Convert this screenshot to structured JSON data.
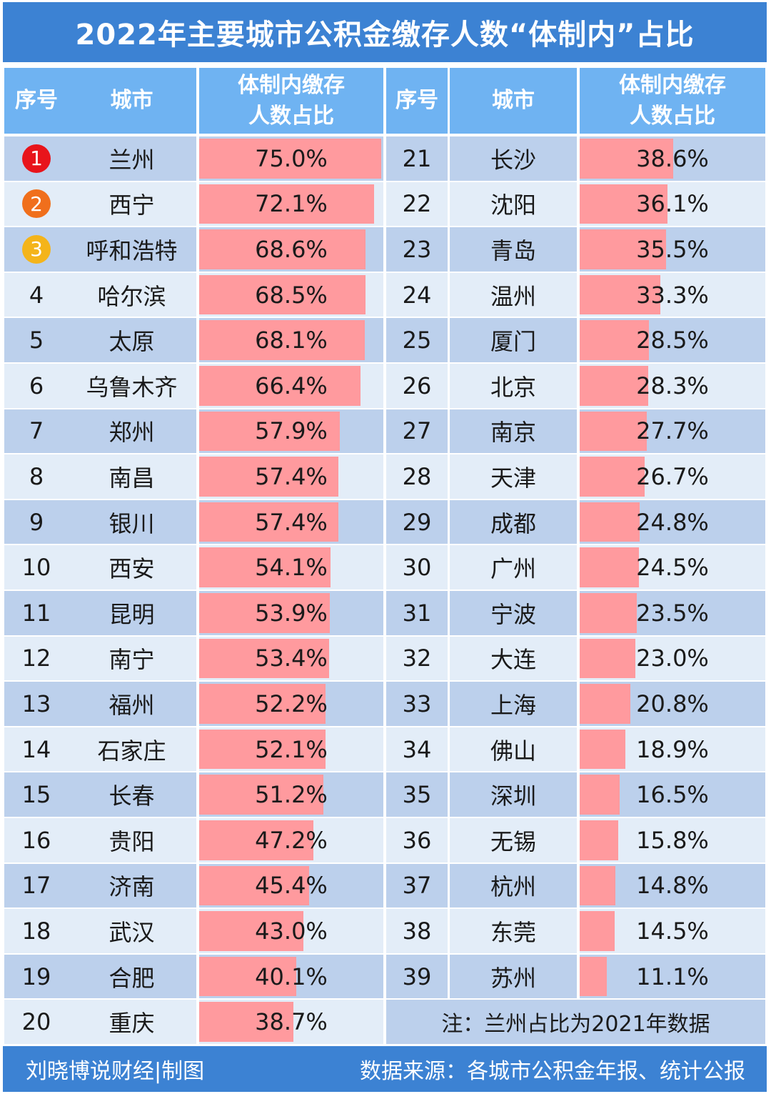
{
  "title": "2022年主要城市公积金缴存人数“体制内”占比",
  "header": {
    "rank": "序号",
    "city": "城市",
    "share_line1": "体制内缴存",
    "share_line2": "人数占比"
  },
  "chart_data": {
    "type": "table",
    "columns": [
      "序号",
      "城市",
      "体制内缴存人数占比"
    ],
    "rows": [
      {
        "rank": "1",
        "city": "兰州",
        "value": 75.0,
        "label": "75.0%"
      },
      {
        "rank": "2",
        "city": "西宁",
        "value": 72.1,
        "label": "72.1%"
      },
      {
        "rank": "3",
        "city": "呼和浩特",
        "value": 68.6,
        "label": "68.6%"
      },
      {
        "rank": "4",
        "city": "哈尔滨",
        "value": 68.5,
        "label": "68.5%"
      },
      {
        "rank": "5",
        "city": "太原",
        "value": 68.1,
        "label": "68.1%"
      },
      {
        "rank": "6",
        "city": "乌鲁木齐",
        "value": 66.4,
        "label": "66.4%"
      },
      {
        "rank": "7",
        "city": "郑州",
        "value": 57.9,
        "label": "57.9%"
      },
      {
        "rank": "8",
        "city": "南昌",
        "value": 57.4,
        "label": "57.4%"
      },
      {
        "rank": "9",
        "city": "银川",
        "value": 57.4,
        "label": "57.4%"
      },
      {
        "rank": "10",
        "city": "西安",
        "value": 54.1,
        "label": "54.1%"
      },
      {
        "rank": "11",
        "city": "昆明",
        "value": 53.9,
        "label": "53.9%"
      },
      {
        "rank": "12",
        "city": "南宁",
        "value": 53.4,
        "label": "53.4%"
      },
      {
        "rank": "13",
        "city": "福州",
        "value": 52.2,
        "label": "52.2%"
      },
      {
        "rank": "14",
        "city": "石家庄",
        "value": 52.1,
        "label": "52.1%"
      },
      {
        "rank": "15",
        "city": "长春",
        "value": 51.2,
        "label": "51.2%"
      },
      {
        "rank": "16",
        "city": "贵阳",
        "value": 47.2,
        "label": "47.2%"
      },
      {
        "rank": "17",
        "city": "济南",
        "value": 45.4,
        "label": "45.4%"
      },
      {
        "rank": "18",
        "city": "武汉",
        "value": 43.0,
        "label": "43.0%"
      },
      {
        "rank": "19",
        "city": "合肥",
        "value": 40.1,
        "label": "40.1%"
      },
      {
        "rank": "20",
        "city": "重庆",
        "value": 38.7,
        "label": "38.7%"
      },
      {
        "rank": "21",
        "city": "长沙",
        "value": 38.6,
        "label": "38.6%"
      },
      {
        "rank": "22",
        "city": "沈阳",
        "value": 36.1,
        "label": "36.1%"
      },
      {
        "rank": "23",
        "city": "青岛",
        "value": 35.5,
        "label": "35.5%"
      },
      {
        "rank": "24",
        "city": "温州",
        "value": 33.3,
        "label": "33.3%"
      },
      {
        "rank": "25",
        "city": "厦门",
        "value": 28.5,
        "label": "28.5%"
      },
      {
        "rank": "26",
        "city": "北京",
        "value": 28.3,
        "label": "28.3%"
      },
      {
        "rank": "27",
        "city": "南京",
        "value": 27.7,
        "label": "27.7%"
      },
      {
        "rank": "28",
        "city": "天津",
        "value": 26.7,
        "label": "26.7%"
      },
      {
        "rank": "29",
        "city": "成都",
        "value": 24.8,
        "label": "24.8%"
      },
      {
        "rank": "30",
        "city": "广州",
        "value": 24.5,
        "label": "24.5%"
      },
      {
        "rank": "31",
        "city": "宁波",
        "value": 23.5,
        "label": "23.5%"
      },
      {
        "rank": "32",
        "city": "大连",
        "value": 23.0,
        "label": "23.0%"
      },
      {
        "rank": "33",
        "city": "上海",
        "value": 20.8,
        "label": "20.8%"
      },
      {
        "rank": "34",
        "city": "佛山",
        "value": 18.9,
        "label": "18.9%"
      },
      {
        "rank": "35",
        "city": "深圳",
        "value": 16.5,
        "label": "16.5%"
      },
      {
        "rank": "36",
        "city": "无锡",
        "value": 15.8,
        "label": "15.8%"
      },
      {
        "rank": "37",
        "city": "杭州",
        "value": 14.8,
        "label": "14.8%"
      },
      {
        "rank": "38",
        "city": "东莞",
        "value": 14.5,
        "label": "14.5%"
      },
      {
        "rank": "39",
        "city": "苏州",
        "value": 11.1,
        "label": "11.1%"
      }
    ],
    "medal_colors": {
      "1": "#e8141b",
      "2": "#f06f1c",
      "3": "#f4b41a"
    }
  },
  "note": "注：兰州占比为2021年数据",
  "footer": {
    "left": "刘晓博说财经|制图",
    "right": "数据来源：各城市公积金年报、统计公报"
  },
  "colors": {
    "title_bg": "#3c82d3",
    "header_bg": "#6fb3f2",
    "row_dark": "#bcd0ec",
    "row_light": "#e3edf8",
    "bar": "#ff9a9e"
  }
}
